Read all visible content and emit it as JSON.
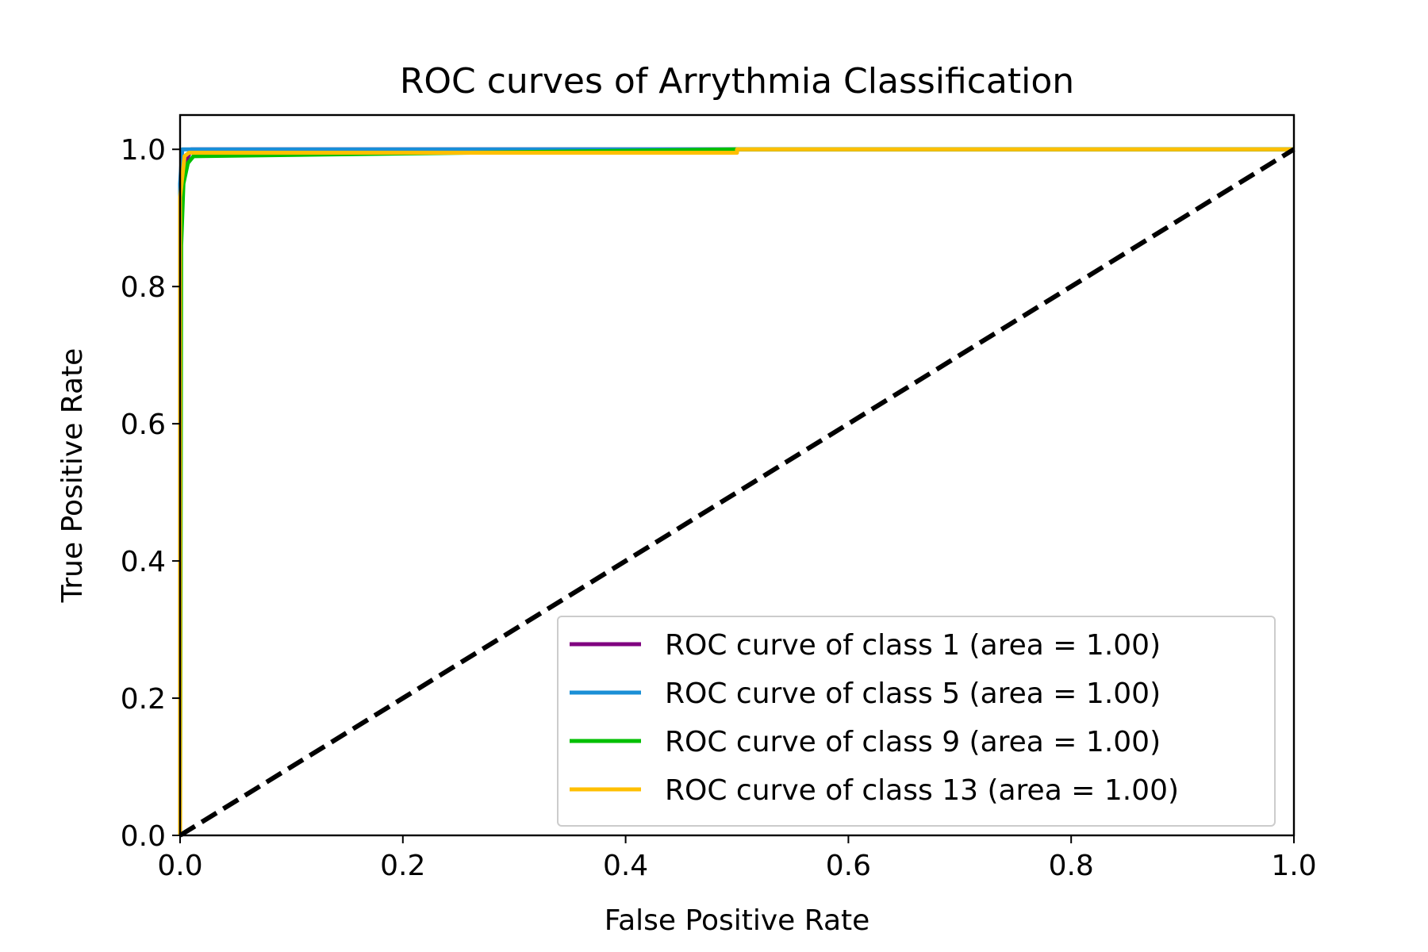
{
  "chart_data": {
    "type": "line",
    "title": "ROC curves of Arrythmia Classification",
    "xlabel": "False Positive Rate",
    "ylabel": "True Positive Rate",
    "xlim": [
      0.0,
      1.0
    ],
    "ylim": [
      0.0,
      1.05
    ],
    "xticks": [
      "0.0",
      "0.2",
      "0.4",
      "0.6",
      "0.8",
      "1.0"
    ],
    "yticks": [
      "0.0",
      "0.2",
      "0.4",
      "0.6",
      "0.8",
      "1.0"
    ],
    "grid": false,
    "legend_position": "lower-right",
    "series": [
      {
        "name": "ROC curve of class 1 (area = 1.00)",
        "color": "#800080",
        "x": [
          0.0,
          0.0,
          0.003,
          0.006,
          0.01,
          1.0
        ],
        "y": [
          0.0,
          0.9,
          0.97,
          0.985,
          1.0,
          1.0
        ]
      },
      {
        "name": "ROC curve of class 5 (area = 1.00)",
        "color": "#1a8fd6",
        "x": [
          0.0,
          0.0,
          0.002,
          0.065,
          1.0
        ],
        "y": [
          0.0,
          0.95,
          1.0,
          1.0,
          1.0
        ]
      },
      {
        "name": "ROC curve of class 9 (area = 1.00)",
        "color": "#00c000",
        "x": [
          0.0,
          0.001,
          0.003,
          0.007,
          0.012,
          0.5,
          1.0
        ],
        "y": [
          0.0,
          0.86,
          0.95,
          0.98,
          0.99,
          1.0,
          1.0
        ]
      },
      {
        "name": "ROC curve of class 13 (area = 1.00)",
        "color": "#ffbf00",
        "x": [
          0.0,
          0.0,
          0.004,
          0.008,
          0.5,
          0.5,
          1.0
        ],
        "y": [
          0.0,
          0.93,
          0.99,
          0.995,
          0.995,
          1.0,
          1.0
        ]
      },
      {
        "name": "",
        "color": "#000000",
        "dashed": true,
        "x": [
          0.0,
          1.0
        ],
        "y": [
          0.0,
          1.0
        ]
      }
    ]
  }
}
